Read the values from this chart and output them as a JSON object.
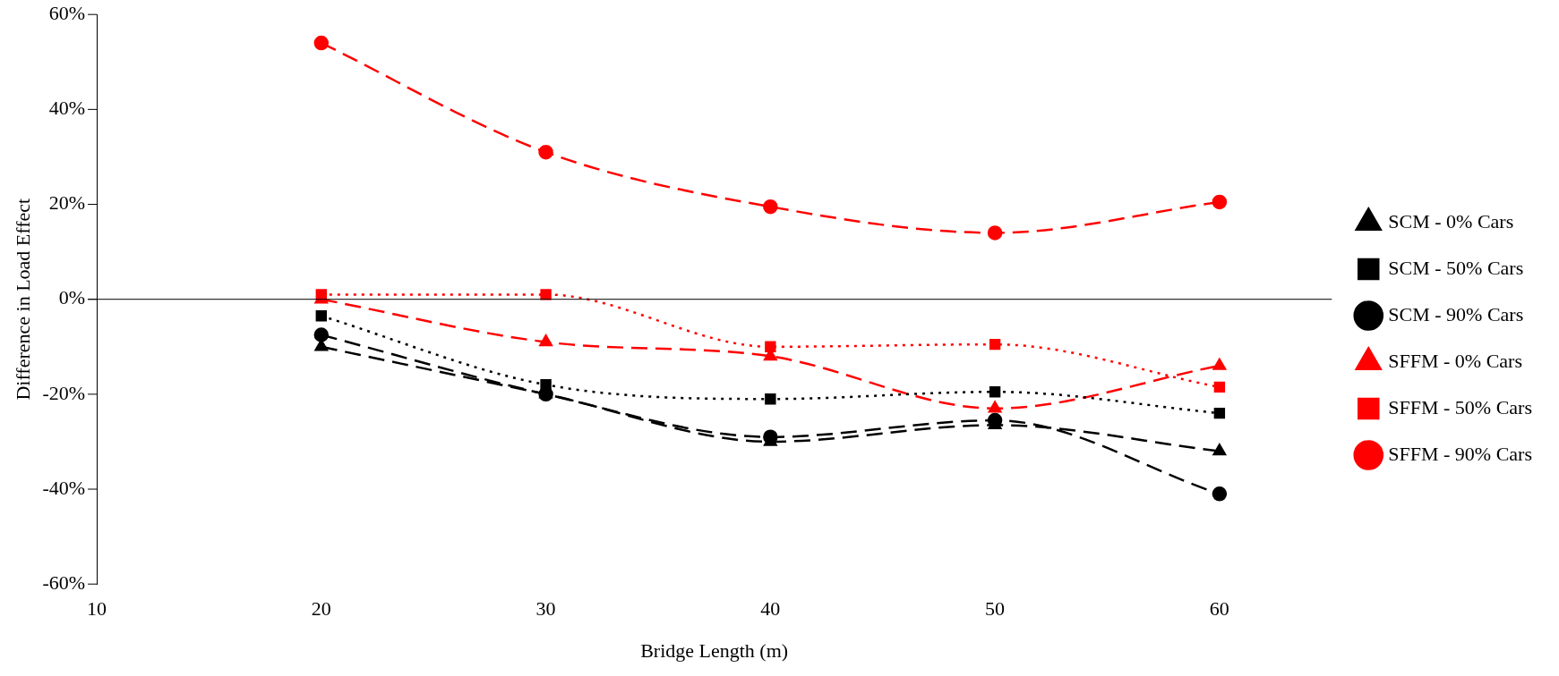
{
  "chart_data": {
    "type": "line",
    "xlabel": "Bridge Length (m)",
    "ylabel": "Difference in Load Effect",
    "x": [
      20,
      30,
      40,
      50,
      60
    ],
    "xlim": [
      10,
      65
    ],
    "xticks": [
      10,
      20,
      30,
      40,
      50,
      60
    ],
    "ylim": [
      -60,
      60
    ],
    "yticks": [
      {
        "value": -60,
        "label": "-60%"
      },
      {
        "value": -40,
        "label": "-40%"
      },
      {
        "value": -20,
        "label": "-20%"
      },
      {
        "value": 0,
        "label": "0%"
      },
      {
        "value": 20,
        "label": "20%"
      },
      {
        "value": 40,
        "label": "40%"
      },
      {
        "value": 60,
        "label": "60%"
      }
    ],
    "grid": false,
    "legend": "right",
    "ref_lines": [
      {
        "axis": "y",
        "value": 0,
        "color": "#000000"
      }
    ],
    "series": [
      {
        "name": "SCM - 0% Cars",
        "color": "#000000",
        "marker": "triangle",
        "line_style": "dashed",
        "values": [
          -10,
          -20,
          -30,
          -26.5,
          -32
        ]
      },
      {
        "name": "SCM - 50% Cars",
        "color": "#000000",
        "marker": "square",
        "line_style": "dotted",
        "values": [
          -3.5,
          -18,
          -21,
          -19.5,
          -24
        ]
      },
      {
        "name": "SCM - 90% Cars",
        "color": "#000000",
        "marker": "circle",
        "line_style": "dashed",
        "values": [
          -7.5,
          -20,
          -29,
          -25.5,
          -41
        ]
      },
      {
        "name": "SFFM - 0% Cars",
        "color": "#ff0000",
        "marker": "triangle",
        "line_style": "dashed",
        "values": [
          0,
          -9,
          -12,
          -23,
          -14
        ]
      },
      {
        "name": "SFFM - 50% Cars",
        "color": "#ff0000",
        "marker": "square",
        "line_style": "dotted",
        "values": [
          1,
          1,
          -10,
          -9.5,
          -18.5
        ]
      },
      {
        "name": "SFFM - 90% Cars",
        "color": "#ff0000",
        "marker": "circle",
        "line_style": "dashed",
        "values": [
          54,
          31,
          19.5,
          14,
          20.5
        ]
      }
    ]
  }
}
